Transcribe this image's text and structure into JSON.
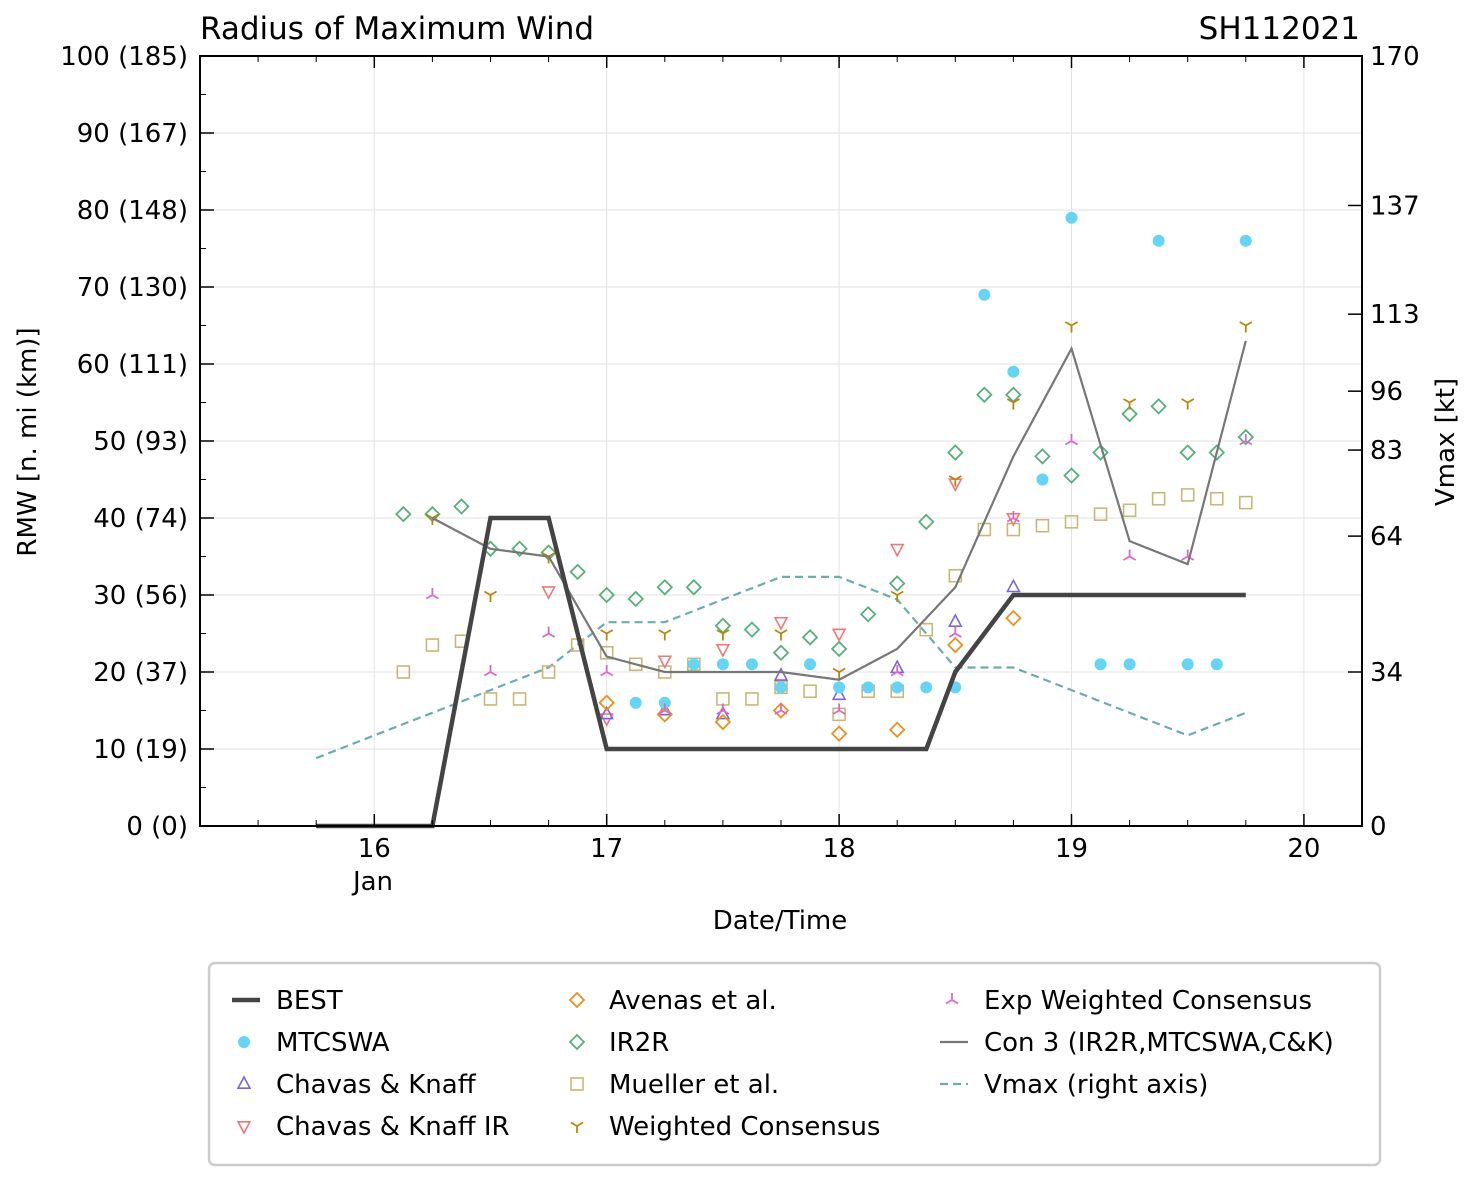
{
  "chart_data": {
    "type": "scatter",
    "title": "Radius of Maximum Wind",
    "storm_id": "SH112021",
    "xlabel": "Date/Time",
    "ylabel": "RMW [n. mi (km)]",
    "y2label": "Vmax [kt]",
    "xlim": [
      15.25,
      20.25
    ],
    "ylim": [
      0,
      100
    ],
    "y2lim": [
      0,
      170
    ],
    "x_ticks": [
      16,
      17,
      18,
      19,
      20
    ],
    "x_tick_labels": [
      "16",
      "17",
      "18",
      "19",
      "20"
    ],
    "x_sub_label": "Jan",
    "y_ticks": [
      0,
      10,
      20,
      30,
      40,
      50,
      60,
      70,
      80,
      90,
      100
    ],
    "y_tick_labels": [
      "0 (0)",
      "10 (19)",
      "20 (37)",
      "30 (56)",
      "40 (74)",
      "50 (93)",
      "60 (111)",
      "70 (130)",
      "80 (148)",
      "90 (167)",
      "100 (185)"
    ],
    "y2_ticks": [
      0,
      34,
      64,
      83,
      96,
      113,
      137,
      170
    ],
    "y2_tick_labels": [
      "0",
      "34",
      "64",
      "83",
      "96",
      "113",
      "137",
      "170"
    ],
    "grid": true,
    "legend_position": "below",
    "series": [
      {
        "name": "BEST",
        "style": "line",
        "color": "#444444",
        "x": [
          15.75,
          16.25,
          16.5,
          16.75,
          17.0,
          17.25,
          17.5,
          17.75,
          18.0,
          18.25,
          18.375,
          18.5,
          18.75,
          19.0,
          19.25,
          19.5,
          19.75
        ],
        "y": [
          0,
          0,
          40,
          40,
          10,
          10,
          10,
          10,
          10,
          10,
          10,
          20,
          30,
          30,
          30,
          30,
          30
        ]
      },
      {
        "name": "MTCSWA",
        "style": "circle",
        "color": "#66d4f5",
        "x": [
          17.125,
          17.25,
          17.375,
          17.5,
          17.625,
          17.75,
          17.875,
          18.0,
          18.125,
          18.25,
          18.375,
          18.5,
          18.625,
          18.75,
          18.875,
          19.0,
          19.125,
          19.25,
          19.375,
          19.5,
          19.625,
          19.75
        ],
        "y": [
          16,
          16,
          21,
          21,
          21,
          18,
          21,
          18,
          18,
          18,
          18,
          18,
          69,
          59,
          45,
          79,
          21,
          21,
          76,
          21,
          21,
          76
        ]
      },
      {
        "name": "Chavas & Knaff",
        "style": "tri-up",
        "color": "#7766dd",
        "x": [
          17.0,
          17.25,
          17.5,
          17.75,
          18.0,
          18.25,
          18.5,
          18.75
        ],
        "y": [
          14.5,
          15,
          14.5,
          19.5,
          17,
          20.5,
          26.5,
          31
        ]
      },
      {
        "name": "Chavas & Knaff IR",
        "style": "tri-down",
        "color": "#ee7777",
        "x": [
          16.75,
          17.0,
          17.25,
          17.5,
          17.75,
          18.0,
          18.25,
          18.5,
          18.75
        ],
        "y": [
          30.5,
          14,
          21.5,
          23,
          26.5,
          25,
          36,
          44.5,
          40
        ]
      },
      {
        "name": "Avenas et al.",
        "style": "diamond",
        "color": "#e8921e",
        "x": [
          17.0,
          17.25,
          17.5,
          17.75,
          18.0,
          18.25,
          18.5,
          18.75
        ],
        "y": [
          16,
          14.5,
          13.5,
          15,
          12,
          12.5,
          23.5,
          27
        ]
      },
      {
        "name": "IR2R",
        "style": "diamond",
        "color": "#55b07a",
        "x": [
          16.125,
          16.25,
          16.375,
          16.5,
          16.625,
          16.75,
          16.875,
          17.0,
          17.125,
          17.25,
          17.375,
          17.5,
          17.625,
          17.75,
          17.875,
          18.0,
          18.125,
          18.25,
          18.375,
          18.5,
          18.625,
          18.75,
          18.875,
          19.0,
          19.125,
          19.25,
          19.375,
          19.5,
          19.625,
          19.75
        ],
        "y": [
          40.5,
          40.5,
          41.5,
          36,
          36,
          35.5,
          33,
          30,
          29.5,
          31,
          31,
          26,
          25.5,
          22.5,
          24.5,
          23,
          27.5,
          31.5,
          39.5,
          48.5,
          56,
          56,
          48,
          45.5,
          48.5,
          53.5,
          54.5,
          48.5,
          48.5,
          50.5
        ]
      },
      {
        "name": "Mueller et al.",
        "style": "square",
        "color": "#c8b878",
        "x": [
          16.125,
          16.25,
          16.375,
          16.5,
          16.625,
          16.75,
          16.875,
          17.0,
          17.125,
          17.25,
          17.375,
          17.5,
          17.625,
          17.75,
          17.875,
          18.0,
          18.125,
          18.25,
          18.375,
          18.5,
          18.625,
          18.75,
          18.875,
          19.0,
          19.125,
          19.25,
          19.375,
          19.5,
          19.625,
          19.75
        ],
        "y": [
          20,
          23.5,
          24,
          16.5,
          16.5,
          20,
          23.5,
          22.5,
          21,
          20,
          21,
          16.5,
          16.5,
          18,
          17.5,
          14.5,
          17.5,
          17.5,
          25.5,
          32.5,
          38.5,
          38.5,
          39,
          39.5,
          40.5,
          41,
          42.5,
          43,
          42.5,
          42
        ]
      },
      {
        "name": "Weighted Consensus",
        "style": "tri-down-line",
        "color": "#b8860b",
        "x": [
          16.25,
          16.5,
          16.75,
          17.0,
          17.25,
          17.5,
          17.75,
          18.0,
          18.25,
          18.5,
          18.75,
          19.0,
          19.25,
          19.5,
          19.75
        ],
        "y": [
          40,
          30,
          35,
          25,
          25,
          25,
          25,
          20,
          30,
          45,
          55,
          65,
          55,
          55,
          65
        ]
      },
      {
        "name": "Exp Weighted Consensus",
        "style": "tri-up-line",
        "color": "#dd66cc",
        "x": [
          16.25,
          16.5,
          16.75,
          17.0,
          17.25,
          17.5,
          17.75,
          18.0,
          18.25,
          18.5,
          18.75,
          19.0,
          19.25,
          19.5,
          19.75
        ],
        "y": [
          30,
          20,
          25,
          20,
          15,
          15,
          15,
          15,
          20,
          25,
          40,
          50,
          35,
          35,
          50
        ]
      },
      {
        "name": "Con 3 (IR2R,MTCSWA,C&K)",
        "style": "line",
        "color": "#777777",
        "x": [
          16.25,
          16.5,
          16.75,
          17.0,
          17.25,
          17.5,
          17.75,
          18.0,
          18.25,
          18.5,
          18.75,
          19.0,
          19.25,
          19.5,
          19.75
        ],
        "y": [
          40,
          36,
          35,
          22,
          20,
          20,
          20,
          19,
          23,
          31,
          48,
          62,
          37,
          34,
          63
        ]
      },
      {
        "name": "Vmax (right axis)",
        "style": "dashed",
        "color": "#6aacaf",
        "axis": "right",
        "x": [
          15.75,
          16.0,
          16.25,
          16.5,
          16.75,
          17.0,
          17.25,
          17.5,
          17.75,
          18.0,
          18.25,
          18.5,
          18.75,
          19.0,
          19.25,
          19.5,
          19.75
        ],
        "y": [
          15,
          20,
          25,
          30,
          35,
          45,
          45,
          50,
          55,
          55,
          50,
          35,
          35,
          30,
          25,
          20,
          25
        ]
      }
    ]
  }
}
